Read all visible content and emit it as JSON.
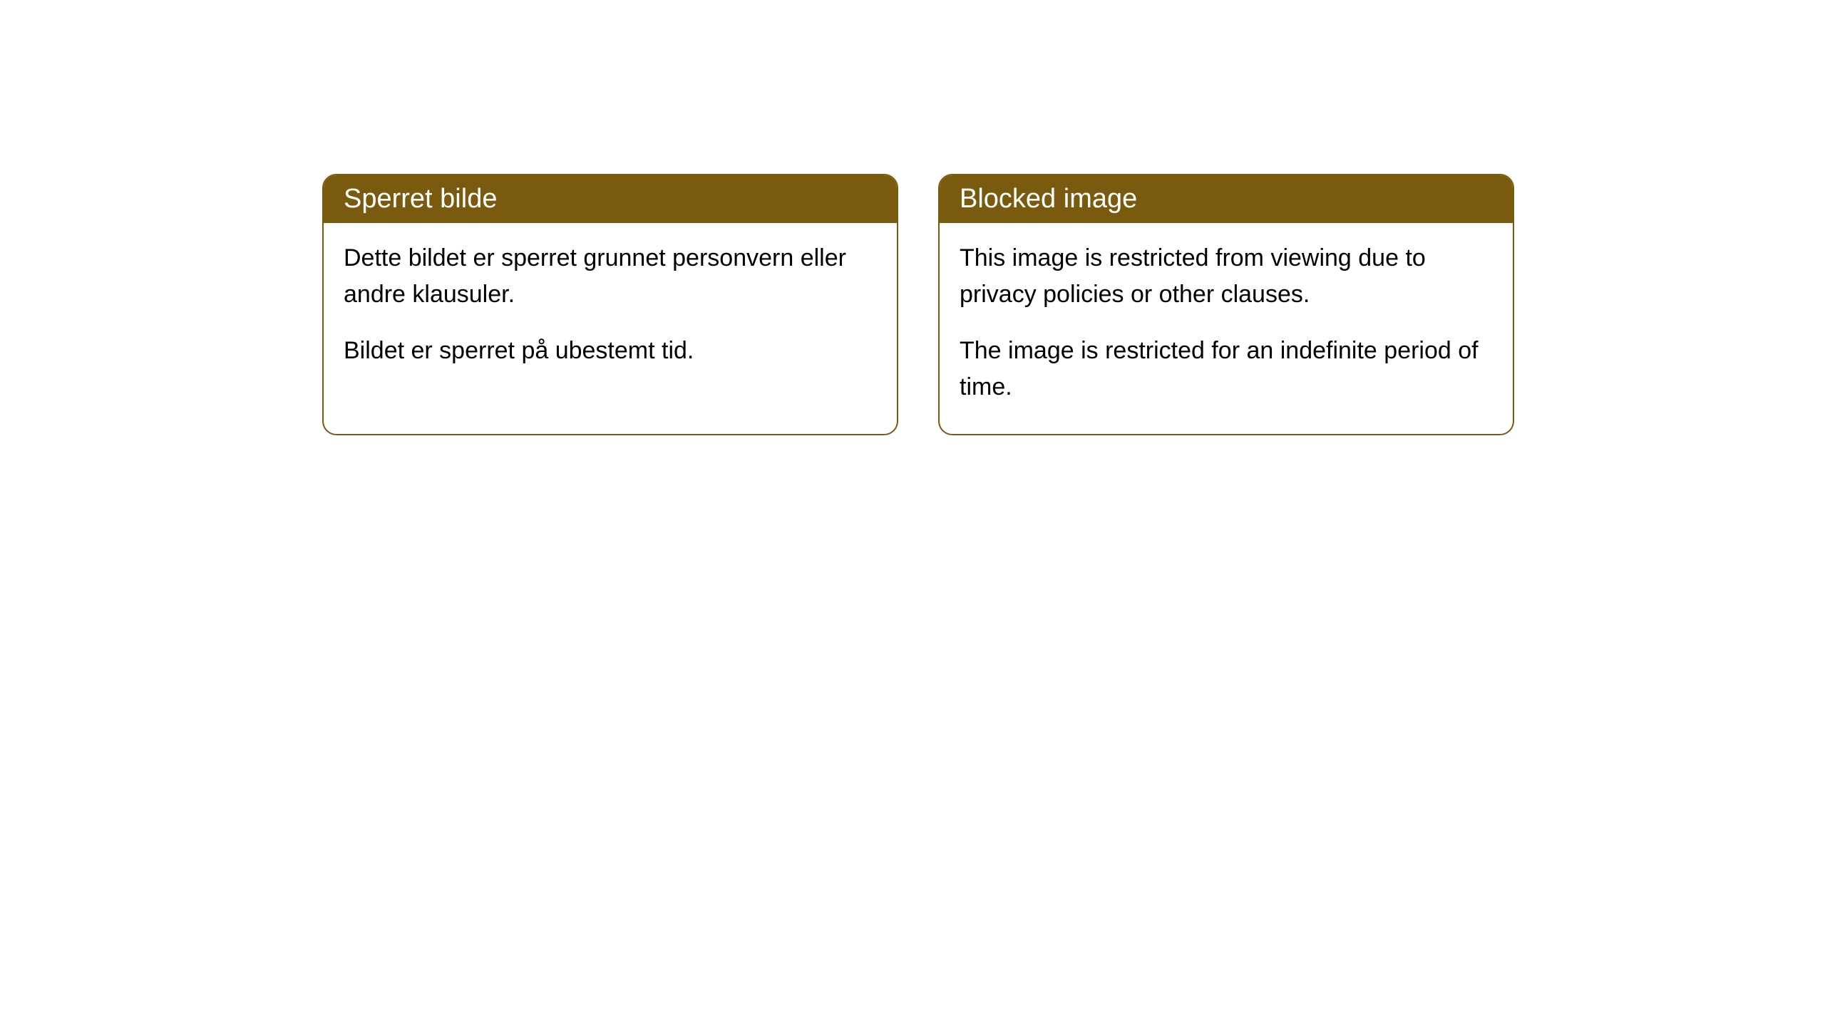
{
  "cards": [
    {
      "title": "Sperret bilde",
      "paragraph1": "Dette bildet er sperret grunnet personvern eller andre klausuler.",
      "paragraph2": "Bildet er sperret på ubestemt tid."
    },
    {
      "title": "Blocked image",
      "paragraph1": "This image is restricted from viewing due to privacy policies or other clauses.",
      "paragraph2": "The image is restricted for an indefinite period of time."
    }
  ],
  "styling": {
    "header_background": "#7a5a0f",
    "header_text_color": "#ffffff",
    "border_color": "#7a5a0f",
    "body_background": "#ffffff",
    "body_text_color": "#000000",
    "border_radius": 20,
    "title_fontsize": 38,
    "body_fontsize": 34
  }
}
